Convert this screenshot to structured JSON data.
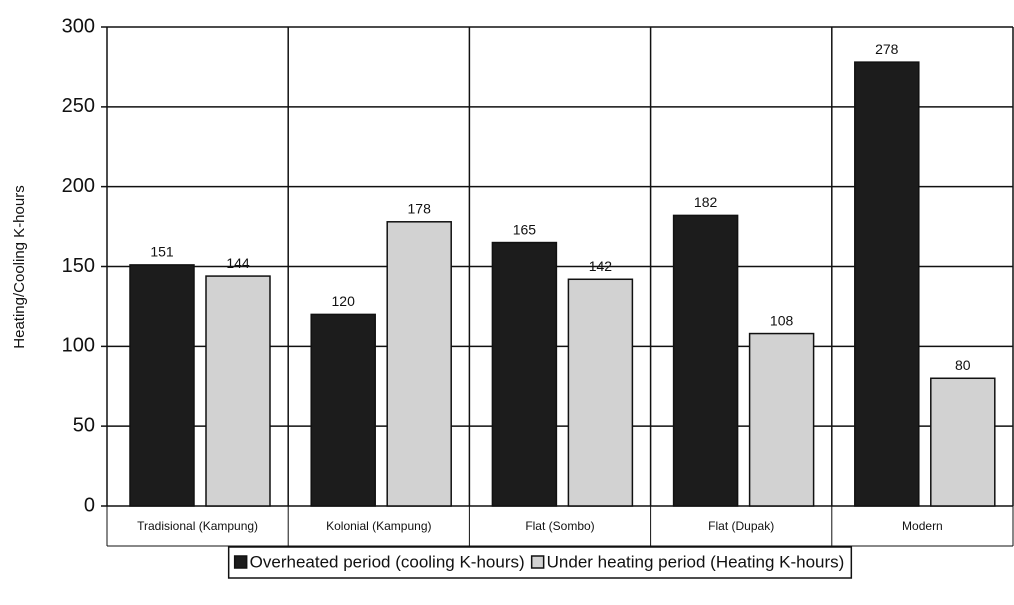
{
  "chart_data": {
    "type": "bar",
    "y_label": "Heating/Cooling K-hours",
    "categories": [
      "Tradisional (Kampung)",
      "Kolonial (Kampung)",
      "Flat (Sombo)",
      "Flat (Dupak)",
      "Modern"
    ],
    "series": [
      {
        "name": "Overheated period (cooling K-hours)",
        "color": "#1c1c1c",
        "values": [
          151,
          120,
          165,
          182,
          278
        ]
      },
      {
        "name": "Under heating period (Heating K-hours)",
        "color": "#d2d2d2",
        "values": [
          144,
          178,
          142,
          108,
          80
        ]
      }
    ],
    "ylim": [
      0,
      300
    ],
    "yticks": [
      0,
      50,
      100,
      150,
      200,
      250,
      300
    ],
    "grid": true,
    "legend": "bottom"
  }
}
